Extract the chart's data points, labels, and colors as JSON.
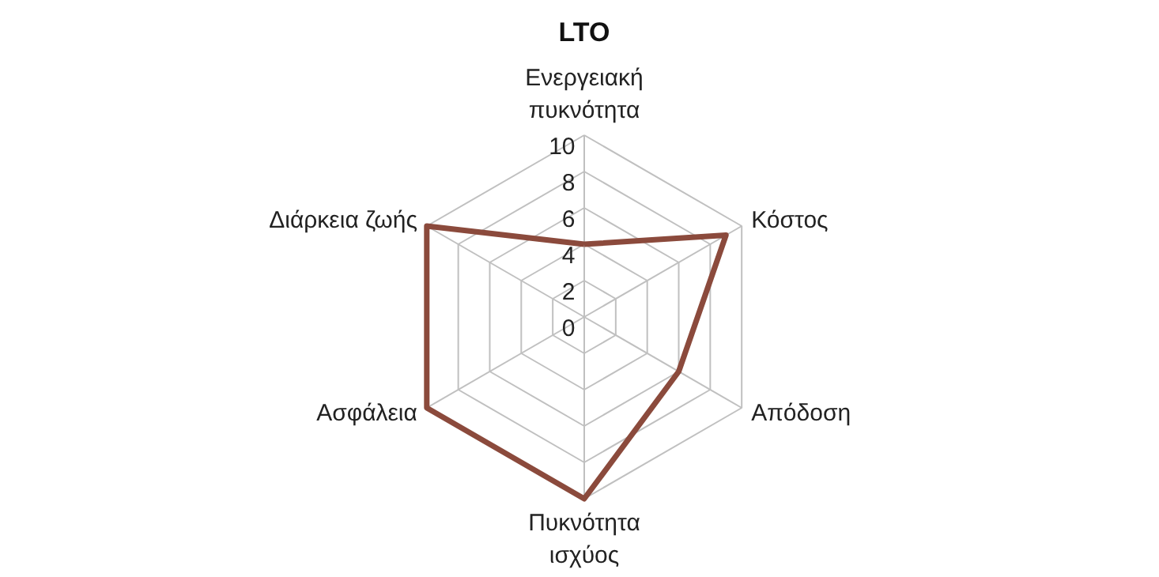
{
  "chart_data": {
    "type": "radar",
    "title": "LTO",
    "categories": [
      "Ενεργειακή πυκνότητα",
      "Κόστος",
      "Απόδοση",
      "Πυκνότητα ισχύος",
      "Ασφάλεια",
      "Διάρκεια ζωής"
    ],
    "series": [
      {
        "color": "#8b4a3c",
        "values": [
          4,
          9,
          6,
          10,
          10,
          10
        ]
      }
    ],
    "ylim": [
      0,
      10
    ],
    "yticks": [
      0,
      2,
      4,
      6,
      8,
      10
    ],
    "grid": true
  }
}
